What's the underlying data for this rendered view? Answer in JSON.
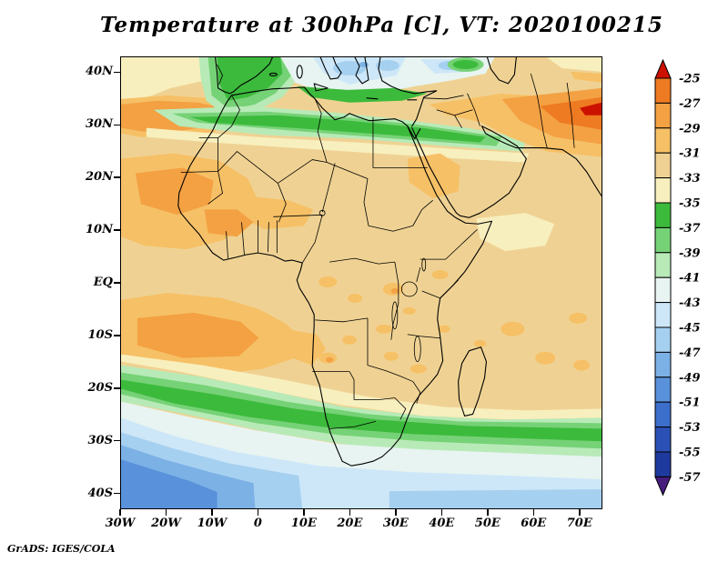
{
  "title": "Temperature at 300hPa [C], VT: 2020100215",
  "attribution": "GrADS: IGES/COLA",
  "axes": {
    "lat_ticks": [
      "40N",
      "30N",
      "20N",
      "10N",
      "EQ",
      "10S",
      "20S",
      "30S",
      "40S"
    ],
    "lat_values": [
      40,
      30,
      20,
      10,
      0,
      -10,
      -20,
      -30,
      -40
    ],
    "lon_ticks": [
      "30W",
      "20W",
      "10W",
      "0",
      "10E",
      "20E",
      "30E",
      "40E",
      "50E",
      "60E",
      "70E"
    ],
    "lon_values": [
      -30,
      -20,
      -10,
      0,
      10,
      20,
      30,
      40,
      50,
      60,
      70
    ],
    "lon_range": [
      -30,
      75
    ],
    "lat_range": [
      -43,
      43
    ]
  },
  "colorbar": {
    "labels": [
      "-25",
      "-27",
      "-29",
      "-31",
      "-33",
      "-35",
      "-37",
      "-39",
      "-41",
      "-43",
      "-45",
      "-47",
      "-49",
      "-51",
      "-53",
      "-55",
      "-57"
    ],
    "colors": [
      "#cc1100",
      "#ee7a21",
      "#f3a143",
      "#f6c066",
      "#efd293",
      "#f8efbe",
      "#3cba3c",
      "#76d276",
      "#b8eab8",
      "#e7f4f1",
      "#cde7f8",
      "#a6d0f0",
      "#7cb1e6",
      "#5991da",
      "#3c6ecb",
      "#2b51b6",
      "#1f3a9e",
      "#461d7c"
    ]
  },
  "chart_data": {
    "type": "heatmap",
    "subtype": "filled_contour_map",
    "title": "Temperature at 300hPa [C], VT: 2020100215",
    "variable": "Temperature",
    "pressure_level": "300hPa",
    "units": "C",
    "valid_time": "2020100215",
    "lon_range": [
      -30,
      75
    ],
    "lat_range": [
      -43,
      43
    ],
    "contour_interval": 2,
    "levels": [
      -57,
      -55,
      -53,
      -51,
      -49,
      -47,
      -45,
      -43,
      -41,
      -39,
      -37,
      -35,
      -33,
      -31,
      -29,
      -27,
      -25
    ],
    "legend_position": "right",
    "regions": [
      {
        "area": "Sahara, Sahel, central Africa and most tropical oceans",
        "approx_temp_C": "-33 to -31"
      },
      {
        "area": "Subtropical North Africa band ~27-31N (10W-45E)",
        "approx_temp_C": "-37 to -35"
      },
      {
        "area": "NW Africa / Iberia (~33-43N)",
        "approx_temp_C": "-39 to -35"
      },
      {
        "area": "Mediterranean (~36-43N, 5E-45E)",
        "approx_temp_C": "-47 to -41"
      },
      {
        "area": "Middle East / NE corner (~45-75E, 24-36N)",
        "approx_temp_C": "-29 to -25"
      },
      {
        "area": "West Africa and east tropical Atlantic (5-22N)",
        "approx_temp_C": "-31 to -27"
      },
      {
        "area": "South tropical Atlantic (3-22S)",
        "approx_temp_C": "-31 to -27"
      },
      {
        "area": "Subtropical southern band (~17-31S, tilted)",
        "approx_temp_C": "-39 to -35"
      },
      {
        "area": "SW corner Southern Ocean (30-43S, 30W-10E)",
        "approx_temp_C": "-51 to -41"
      },
      {
        "area": "South of 33S elsewhere",
        "approx_temp_C": "-47 to -41"
      }
    ]
  }
}
